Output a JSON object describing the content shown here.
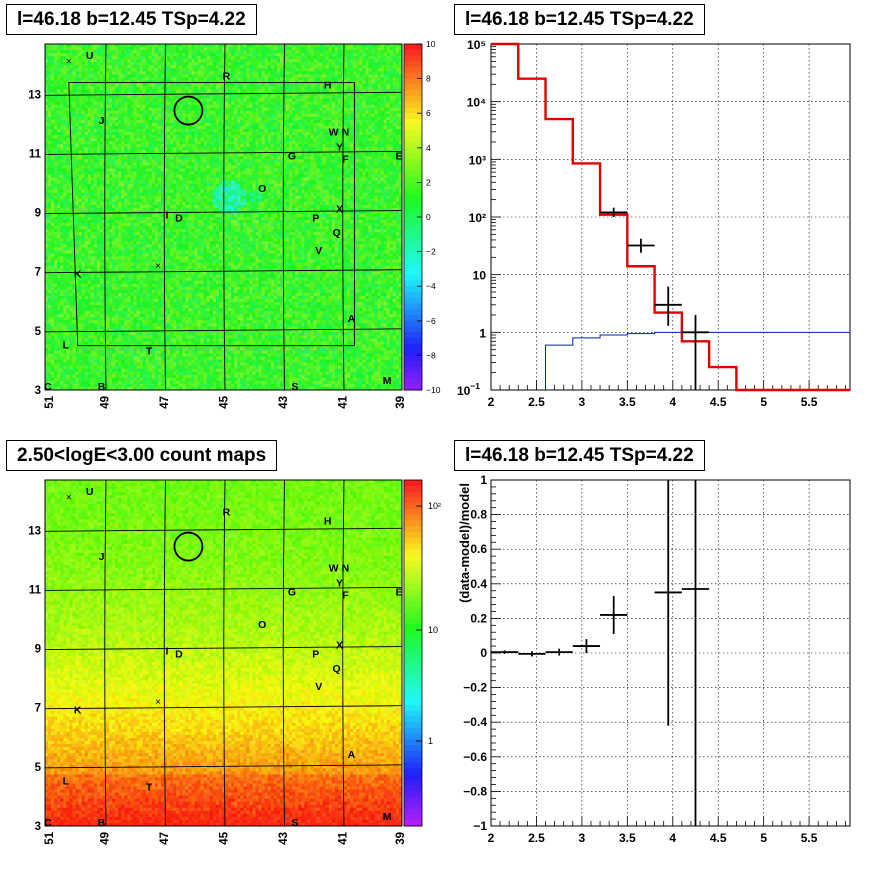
{
  "chart_data": [
    {
      "id": "map-residual",
      "type": "heatmap",
      "title": "l=46.18 b=12.45 TSp=4.22",
      "x_ticks": [
        "51",
        "49",
        "47",
        "45",
        "43",
        "41",
        "39"
      ],
      "y_ticks": [
        "3",
        "5",
        "7",
        "9",
        "11",
        "13"
      ],
      "colorbar_ticks": [
        "10",
        "8",
        "6",
        "4",
        "2",
        "0",
        "−2",
        "−4",
        "−6",
        "−8",
        "−10"
      ],
      "zlim": [
        -10,
        10
      ],
      "sources": [
        {
          "label": "U",
          "x": 49.5,
          "y": 14.2
        },
        {
          "label": "R",
          "x": 44.9,
          "y": 13.5
        },
        {
          "label": "H",
          "x": 41.5,
          "y": 13.2
        },
        {
          "label": "J",
          "x": 49.1,
          "y": 12.0
        },
        {
          "label": "W",
          "x": 41.3,
          "y": 11.6
        },
        {
          "label": "N",
          "x": 40.9,
          "y": 11.6
        },
        {
          "label": "Y",
          "x": 41.1,
          "y": 11.1
        },
        {
          "label": "G",
          "x": 42.7,
          "y": 10.8
        },
        {
          "label": "F",
          "x": 40.9,
          "y": 10.7
        },
        {
          "label": "E",
          "x": 39.1,
          "y": 10.8
        },
        {
          "label": "O",
          "x": 43.7,
          "y": 9.7
        },
        {
          "label": "X",
          "x": 41.1,
          "y": 9.0
        },
        {
          "label": "I",
          "x": 46.9,
          "y": 8.8
        },
        {
          "label": "D",
          "x": 46.5,
          "y": 8.7
        },
        {
          "label": "P",
          "x": 41.9,
          "y": 8.7
        },
        {
          "label": "Q",
          "x": 41.2,
          "y": 8.2
        },
        {
          "label": "V",
          "x": 41.8,
          "y": 7.6
        },
        {
          "label": "K",
          "x": 49.9,
          "y": 6.8
        },
        {
          "label": "A",
          "x": 40.7,
          "y": 5.3
        },
        {
          "label": "L",
          "x": 50.3,
          "y": 4.4
        },
        {
          "label": "T",
          "x": 47.5,
          "y": 4.2
        },
        {
          "label": "C",
          "x": 50.9,
          "y": 3.0
        },
        {
          "label": "B",
          "x": 49.1,
          "y": 3.0
        },
        {
          "label": "S",
          "x": 42.6,
          "y": 3.0
        },
        {
          "label": "M",
          "x": 39.5,
          "y": 3.2
        }
      ],
      "crosses": [
        {
          "x": 50.2,
          "y": 14.1
        },
        {
          "x": 47.2,
          "y": 7.2
        }
      ],
      "circle": {
        "x": 46.18,
        "y": 12.45
      }
    },
    {
      "id": "spectrum",
      "type": "line",
      "title": "l=46.18 b=12.45 TSp=4.22",
      "log_y": true,
      "xlim": [
        2,
        5.95
      ],
      "ylim": [
        0.1,
        100000
      ],
      "x_ticks": [
        "2",
        "2.5",
        "3",
        "3.5",
        "4",
        "4.5",
        "5",
        "5.5"
      ],
      "y_ticks": [
        "10",
        "1",
        "10",
        "10²",
        "10³",
        "10⁴",
        "10⁵"
      ],
      "y_tick_prefix_first": "10",
      "series": [
        {
          "type": "step-model-red",
          "bins": [
            2,
            2.3,
            2.6,
            2.9,
            3.2,
            3.5,
            3.8,
            4.1,
            4.4,
            4.7,
            5.0,
            5.95
          ],
          "values": [
            100000,
            25000,
            5000,
            850,
            110,
            14,
            2.2,
            0.7,
            0.25,
            0.1,
            0.1
          ]
        },
        {
          "type": "step-model-blue",
          "bins": [
            2.6,
            2.9,
            3.2,
            3.5,
            3.8,
            4.1,
            4.4,
            5.95
          ],
          "values": [
            0.6,
            0.8,
            0.9,
            0.95,
            1.0,
            1.0,
            1.0
          ]
        },
        {
          "type": "data-points",
          "points": [
            {
              "x": 3.35,
              "xerr": 0.15,
              "y": 120,
              "ylo": 100,
              "yhi": 145
            },
            {
              "x": 3.65,
              "xerr": 0.15,
              "y": 32,
              "ylo": 24,
              "yhi": 42
            },
            {
              "x": 3.95,
              "xerr": 0.15,
              "y": 3,
              "ylo": 1.3,
              "yhi": 6.2
            },
            {
              "x": 4.25,
              "xerr": 0.15,
              "y": 1,
              "ylo": 0.1,
              "yhi": 2.0
            }
          ]
        }
      ]
    },
    {
      "id": "map-counts",
      "type": "heatmap",
      "title": "2.50<logE<3.00 count maps",
      "x_ticks": [
        "51",
        "49",
        "47",
        "45",
        "43",
        "41",
        "39"
      ],
      "y_ticks": [
        "3",
        "5",
        "7",
        "9",
        "11",
        "13"
      ],
      "colorbar_ticks": [
        "10²",
        "10",
        "1"
      ],
      "log_z": true
    },
    {
      "id": "residual",
      "type": "scatter",
      "title": "l=46.18 b=12.45 TSp=4.22",
      "ylabel": "(data-model)/model",
      "xlim": [
        2,
        5.95
      ],
      "ylim": [
        -1,
        1
      ],
      "x_ticks": [
        "2",
        "2.5",
        "3",
        "3.5",
        "4",
        "4.5",
        "5",
        "5.5"
      ],
      "y_ticks": [
        "1",
        "0.8",
        "0.6",
        "0.4",
        "0.2",
        "0",
        "−0.2",
        "−0.4",
        "−0.6",
        "−0.8",
        "−1"
      ],
      "points": [
        {
          "x": 2.15,
          "xerr": 0.15,
          "y": 0.005,
          "yerr": 0.01
        },
        {
          "x": 2.45,
          "xerr": 0.15,
          "y": -0.005,
          "yerr": 0.015
        },
        {
          "x": 2.75,
          "xerr": 0.15,
          "y": 0.005,
          "yerr": 0.02
        },
        {
          "x": 3.05,
          "xerr": 0.15,
          "y": 0.04,
          "yerr": 0.04
        },
        {
          "x": 3.35,
          "xerr": 0.15,
          "y": 0.22,
          "yerr": 0.11
        },
        {
          "x": 3.95,
          "xerr": 0.15,
          "y": 0.35,
          "ylo": -0.42,
          "yhi": 1.0
        },
        {
          "x": 4.25,
          "xerr": 0.15,
          "y": 0.37,
          "ylo": -1.0,
          "yhi": 1.0
        }
      ]
    }
  ]
}
